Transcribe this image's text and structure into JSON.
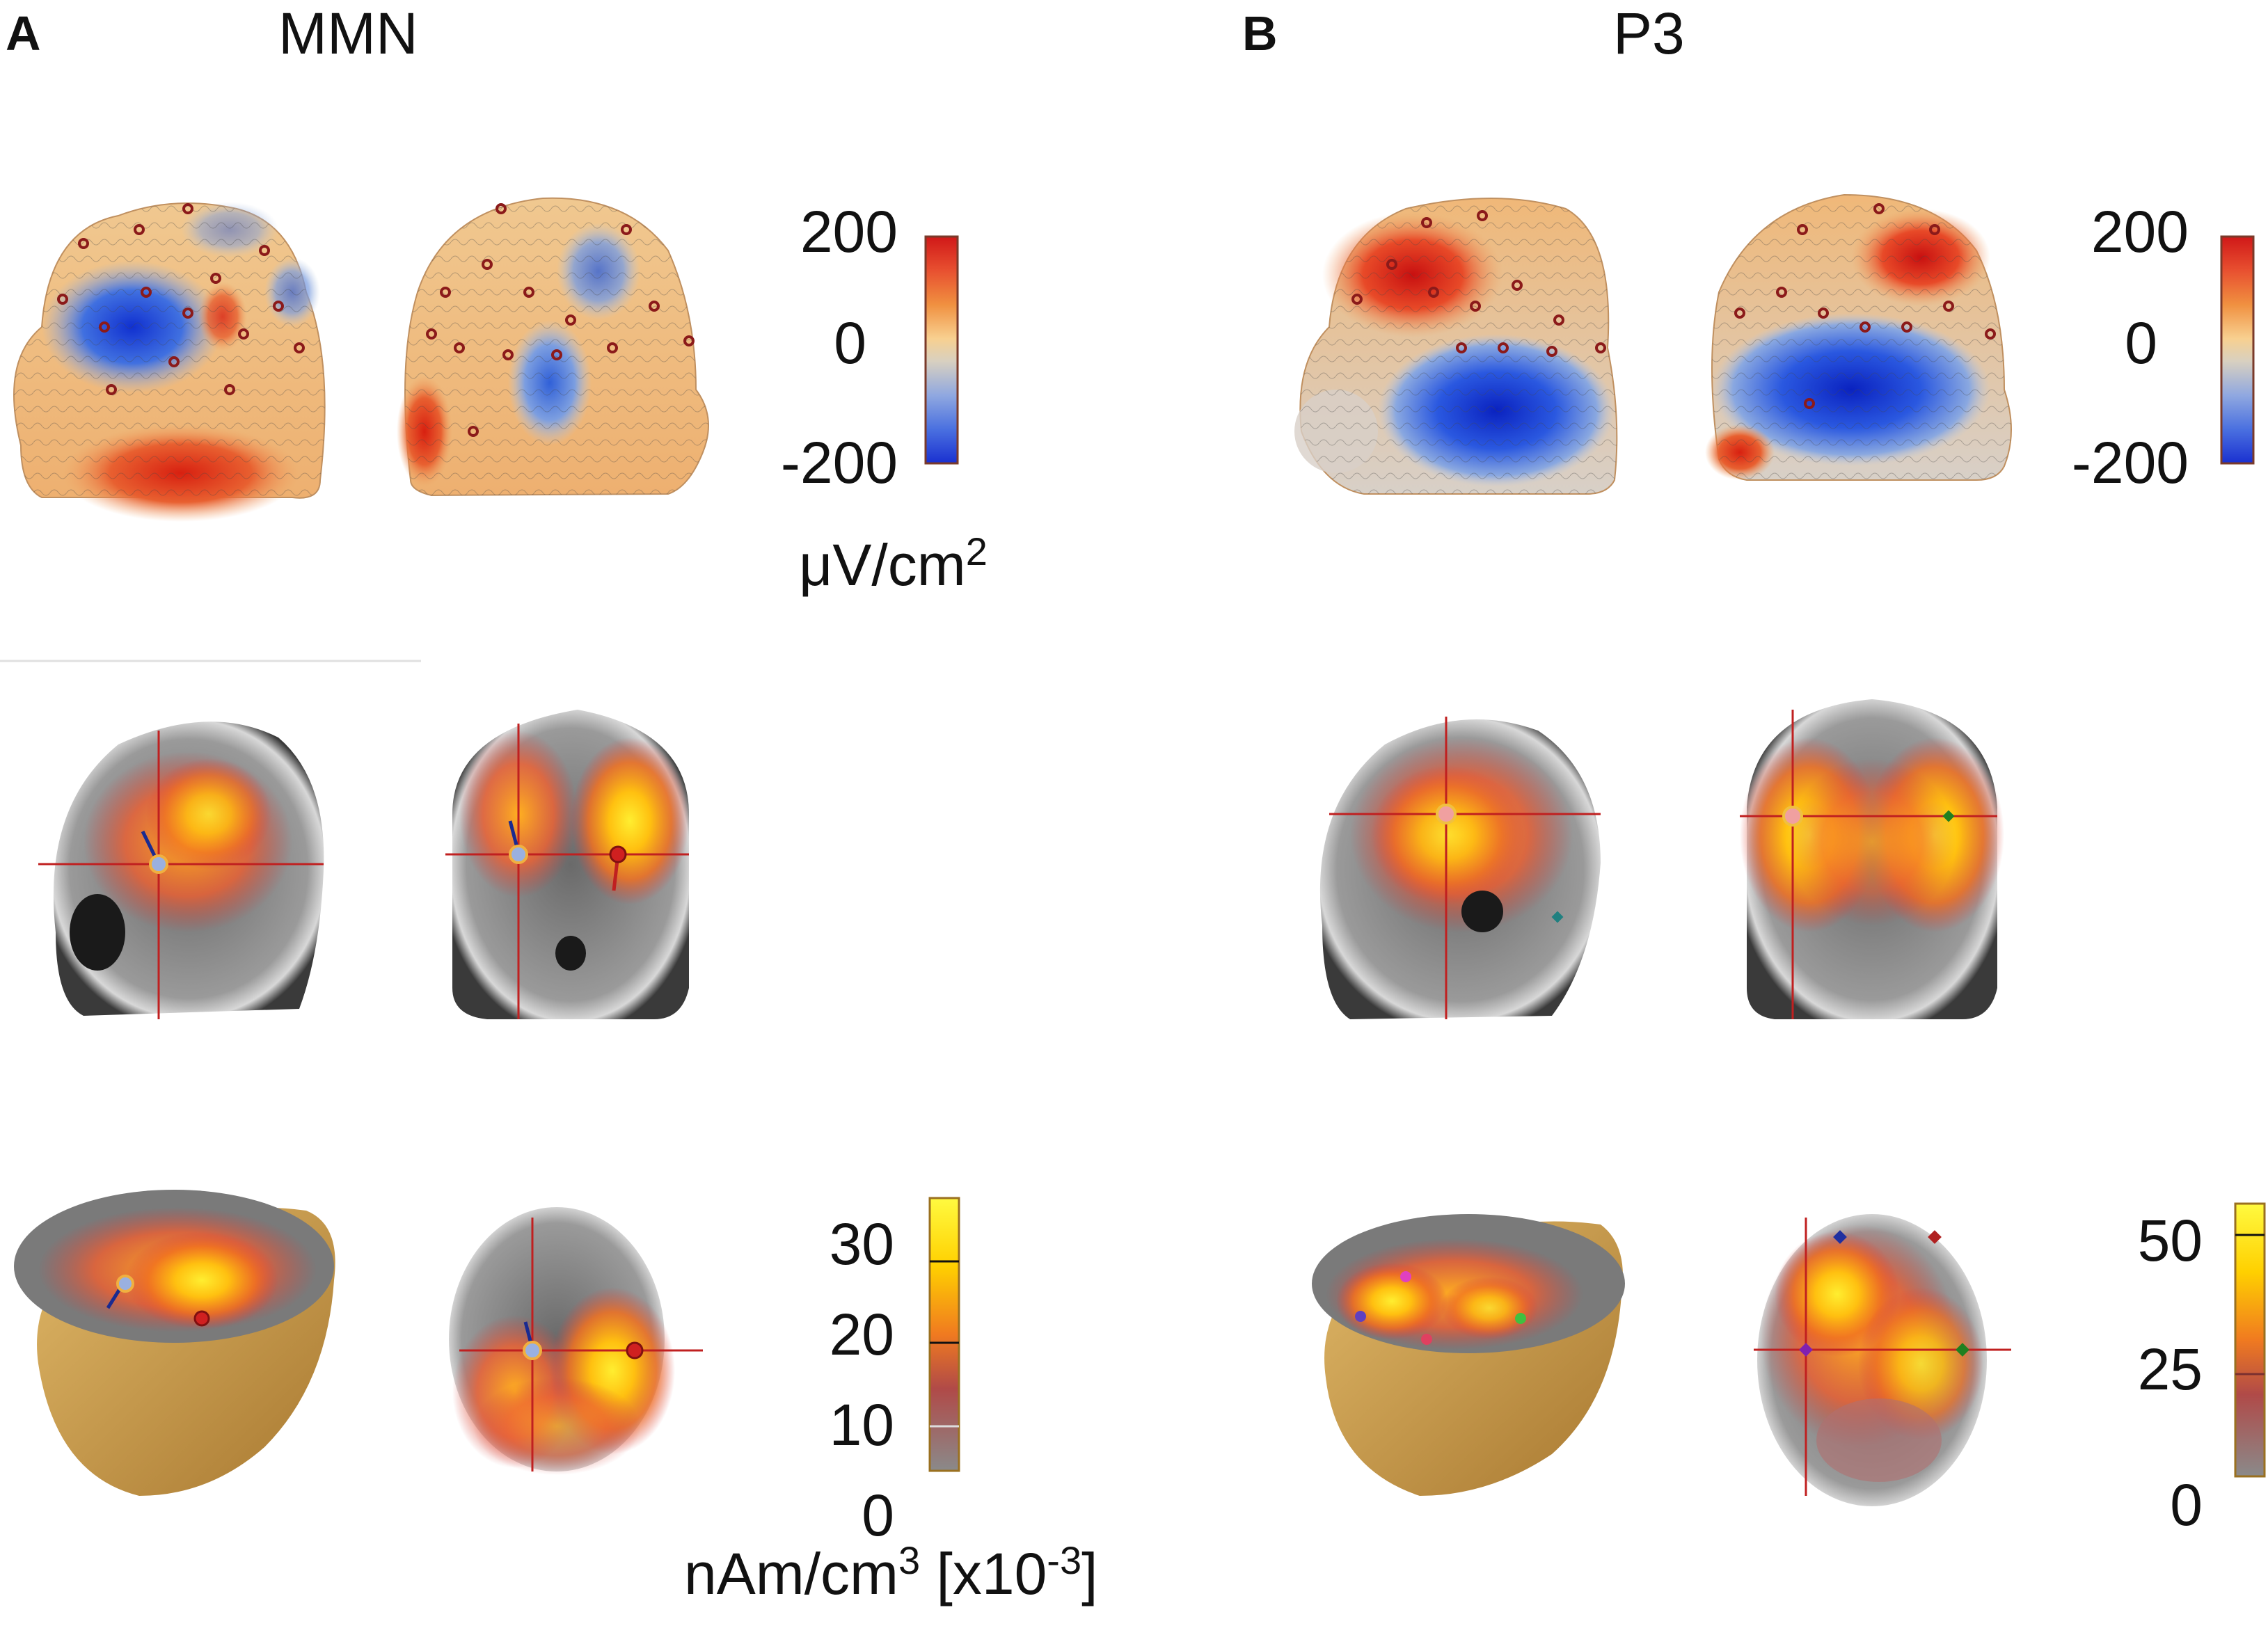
{
  "panel_a": {
    "letter": "A",
    "title": "MMN",
    "scalp_colorbar": {
      "max": "200",
      "mid": "0",
      "min": "-200"
    },
    "scalp_unit": {
      "base": "μV/cm",
      "sup": "2"
    },
    "source_colorbar": {
      "ticks": [
        "30",
        "20",
        "10",
        "0"
      ]
    },
    "source_unit": {
      "base": "nAm/cm",
      "sup1": "3",
      "mid": " [x10",
      "sup2": "-3",
      "end": "]"
    }
  },
  "panel_b": {
    "letter": "B",
    "title": "P3",
    "scalp_colorbar": {
      "max": "200",
      "mid": "0",
      "min": "-200"
    },
    "source_colorbar": {
      "ticks": [
        "50",
        "25",
        "0"
      ]
    }
  },
  "colors": {
    "negative": "#1a3cd8",
    "positive": "#d42020",
    "neutral": "#e8c890",
    "source_hot": "#ffe000",
    "source_warm": "#f08020",
    "mri_gray": "#8a8a8a",
    "head_skin": "#c89a50",
    "electrode": "#8b1a1a"
  }
}
